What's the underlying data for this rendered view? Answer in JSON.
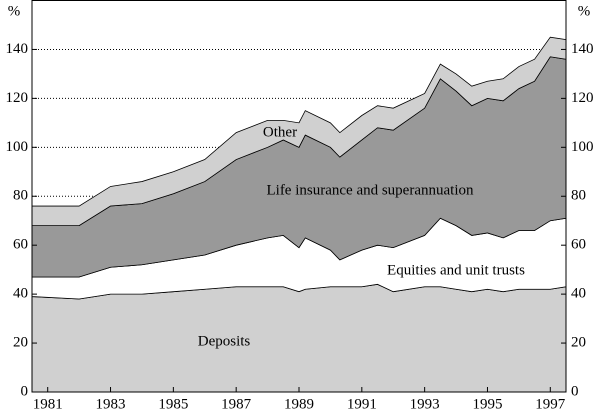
{
  "chart_data": {
    "type": "stacked_area",
    "y_unit": "%",
    "x": [
      1980.5,
      1982,
      1983,
      1984,
      1985,
      1986,
      1987,
      1988,
      1988.5,
      1989,
      1989.2,
      1990,
      1990.3,
      1991,
      1991.5,
      1992,
      1993,
      1993.5,
      1994,
      1994.5,
      1995,
      1995.5,
      1996,
      1996.5,
      1997,
      1997.5
    ],
    "series": [
      {
        "name": "Deposits",
        "color": "#d0d0d0",
        "values": [
          39,
          38,
          40,
          40,
          41,
          42,
          43,
          43,
          43,
          41,
          42,
          43,
          43,
          43,
          44,
          41,
          43,
          43,
          42,
          41,
          42,
          41,
          42,
          42,
          42,
          43
        ]
      },
      {
        "name": "Equities and unit trusts",
        "color": "#ffffff",
        "values": [
          8,
          9,
          11,
          12,
          13,
          14,
          17,
          20,
          21,
          18,
          21,
          15,
          11,
          15,
          16,
          18,
          21,
          28,
          26,
          23,
          23,
          22,
          24,
          24,
          28,
          28
        ]
      },
      {
        "name": "Life insurance and superannuation",
        "color": "#999999",
        "values": [
          21,
          21,
          25,
          25,
          27,
          30,
          35,
          37,
          39,
          41,
          42,
          42,
          42,
          45,
          48,
          48,
          52,
          57,
          55,
          53,
          55,
          56,
          58,
          61,
          67,
          65
        ]
      },
      {
        "name": "Other",
        "color": "#d0d0d0",
        "values": [
          8,
          8,
          8,
          9,
          9,
          9,
          11,
          11,
          8,
          10,
          10,
          10,
          10,
          10,
          9,
          9,
          6,
          6,
          7,
          8,
          7,
          9,
          9,
          9,
          8,
          8
        ]
      }
    ],
    "xlim": [
      1980.5,
      1997.5
    ],
    "xticks": [
      1981,
      1983,
      1985,
      1987,
      1989,
      1991,
      1993,
      1995,
      1997
    ],
    "ylim": [
      0,
      160
    ],
    "yticks": [
      0,
      20,
      40,
      60,
      80,
      100,
      120,
      140
    ],
    "grid": true
  }
}
